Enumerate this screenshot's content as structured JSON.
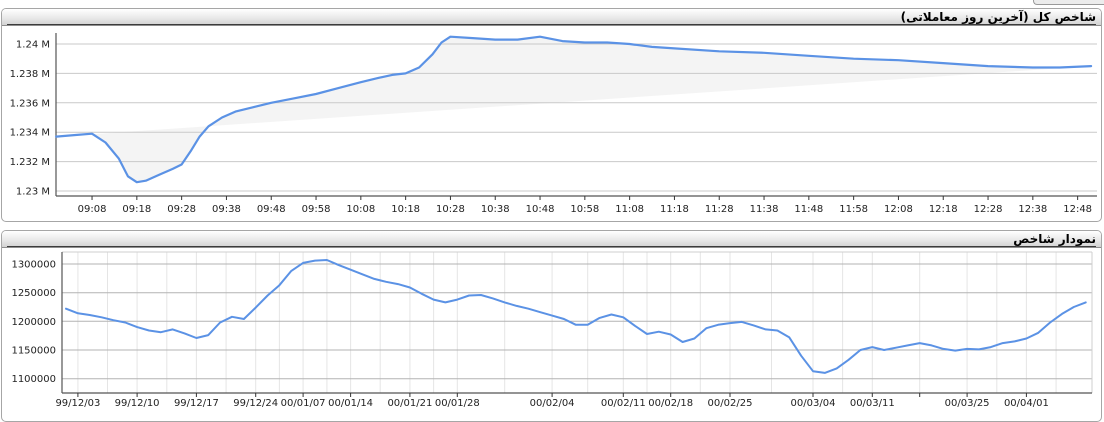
{
  "panels": [
    {
      "title": "شاخص کل (آخرین روز معاملاتی)"
    },
    {
      "title": "نمودار شاخص"
    }
  ],
  "colors": {
    "line_blue": "#5b92e5",
    "band_fill": "rgba(0,0,0,0.045)",
    "grid_major_top": "#c9c9c9",
    "grid_major_bottom": "#b3b3b3",
    "grid_minor_vertical": "#e5e5e5",
    "axis_line": "#555555",
    "plot_border_light": "#cfcfcf",
    "header_underline": "#3c3c3c"
  },
  "chart_data": [
    {
      "type": "line",
      "title": "شاخص کل (آخرین روز معاملاتی)",
      "series_name": "شاخص کل",
      "x_tick_labels": [
        "09:08",
        "09:18",
        "09:28",
        "09:38",
        "09:48",
        "09:58",
        "10:08",
        "10:18",
        "10:28",
        "10:38",
        "10:48",
        "10:58",
        "11:08",
        "11:18",
        "11:28",
        "11:38",
        "11:48",
        "11:58",
        "12:08",
        "12:18",
        "12:28",
        "12:38",
        "12:48"
      ],
      "y_tick_labels": [
        "1.24 M",
        "1.238 M",
        "1.236 M",
        "1.234 M",
        "1.232 M",
        "1.23 M"
      ],
      "y_tick_values": [
        1.24,
        1.238,
        1.236,
        1.234,
        1.232,
        1.23
      ],
      "ylim": [
        1.2294,
        1.2408
      ],
      "grid": "horizontal-only",
      "legend": "none",
      "fill_style": "band-between-line-and-open-close-chord",
      "points": [
        [
          "09:00",
          1.2337
        ],
        [
          "09:04",
          1.2338
        ],
        [
          "09:08",
          1.2339
        ],
        [
          "09:11",
          1.2333
        ],
        [
          "09:14",
          1.2322
        ],
        [
          "09:16",
          1.231
        ],
        [
          "09:18",
          1.2306
        ],
        [
          "09:20",
          1.2307
        ],
        [
          "09:23",
          1.2311
        ],
        [
          "09:26",
          1.2315
        ],
        [
          "09:28",
          1.2318
        ],
        [
          "09:30",
          1.2327
        ],
        [
          "09:32",
          1.2337
        ],
        [
          "09:34",
          1.2344
        ],
        [
          "09:37",
          1.235
        ],
        [
          "09:40",
          1.2354
        ],
        [
          "09:44",
          1.2357
        ],
        [
          "09:48",
          1.236
        ],
        [
          "09:53",
          1.2363
        ],
        [
          "09:58",
          1.2366
        ],
        [
          "10:03",
          1.237
        ],
        [
          "10:08",
          1.2374
        ],
        [
          "10:12",
          1.2377
        ],
        [
          "10:15",
          1.2379
        ],
        [
          "10:18",
          1.238
        ],
        [
          "10:21",
          1.2384
        ],
        [
          "10:24",
          1.2393
        ],
        [
          "10:26",
          1.2401
        ],
        [
          "10:28",
          1.2405
        ],
        [
          "10:33",
          1.2404
        ],
        [
          "10:38",
          1.2403
        ],
        [
          "10:43",
          1.2403
        ],
        [
          "10:48",
          1.2405
        ],
        [
          "10:53",
          1.2402
        ],
        [
          "10:58",
          1.2401
        ],
        [
          "11:03",
          1.2401
        ],
        [
          "11:08",
          1.24
        ],
        [
          "11:13",
          1.2398
        ],
        [
          "11:18",
          1.2397
        ],
        [
          "11:28",
          1.2395
        ],
        [
          "11:38",
          1.2394
        ],
        [
          "11:48",
          1.2392
        ],
        [
          "11:58",
          1.239
        ],
        [
          "12:08",
          1.2389
        ],
        [
          "12:18",
          1.2387
        ],
        [
          "12:28",
          1.2385
        ],
        [
          "12:38",
          1.2384
        ],
        [
          "12:44",
          1.2384
        ],
        [
          "12:51",
          1.2385
        ]
      ]
    },
    {
      "type": "line",
      "title": "نمودار شاخص",
      "series_name": "شاخص",
      "x_tick_labels": [
        {
          "label": "99/12/03",
          "i": 1
        },
        {
          "label": "99/12/10",
          "i": 6
        },
        {
          "label": "99/12/17",
          "i": 11
        },
        {
          "label": "99/12/24",
          "i": 16
        },
        {
          "label": "00/01/07",
          "i": 20
        },
        {
          "label": "00/01/14",
          "i": 24
        },
        {
          "label": "00/01/21",
          "i": 29
        },
        {
          "label": "00/01/28",
          "i": 33
        },
        {
          "label": "00/02/04",
          "i": 41
        },
        {
          "label": "00/02/11",
          "i": 47
        },
        {
          "label": "00/02/18",
          "i": 51
        },
        {
          "label": "00/02/25",
          "i": 56
        },
        {
          "label": "00/03/04",
          "i": 63
        },
        {
          "label": "00/03/11",
          "i": 68
        },
        {
          "label": "00/03/25",
          "i": 76
        },
        {
          "label": "00/04/01",
          "i": 81
        }
      ],
      "unlabeled_tick_i": 72,
      "y_tick_labels": [
        "1300000",
        "1250000",
        "1200000",
        "1150000",
        "1100000"
      ],
      "y_tick_values": [
        1300000,
        1250000,
        1200000,
        1150000,
        1100000
      ],
      "ylim": [
        1075000,
        1321000
      ],
      "grid": "both",
      "legend": "none",
      "values": [
        1222000,
        1214000,
        1211000,
        1207000,
        1202000,
        1198000,
        1190000,
        1184000,
        1181000,
        1186000,
        1179000,
        1171000,
        1176000,
        1198000,
        1208000,
        1204000,
        1224000,
        1245000,
        1263000,
        1288000,
        1302000,
        1306000,
        1307000,
        1298000,
        1290000,
        1282000,
        1274000,
        1269000,
        1265000,
        1259000,
        1248000,
        1238000,
        1233000,
        1238000,
        1245000,
        1246000,
        1240000,
        1233000,
        1227000,
        1222000,
        1216000,
        1210000,
        1204000,
        1194000,
        1194000,
        1206000,
        1212000,
        1207000,
        1192000,
        1178000,
        1182000,
        1177000,
        1164000,
        1170000,
        1188000,
        1194000,
        1197000,
        1199000,
        1193000,
        1186000,
        1184000,
        1172000,
        1140000,
        1113000,
        1110000,
        1118000,
        1133000,
        1150000,
        1155000,
        1150000,
        1154000,
        1158000,
        1162000,
        1158000,
        1152000,
        1149000,
        1152000,
        1151000,
        1155000,
        1162000,
        1165000,
        1170000,
        1180000,
        1198000,
        1213000,
        1225000,
        1233000
      ]
    }
  ]
}
